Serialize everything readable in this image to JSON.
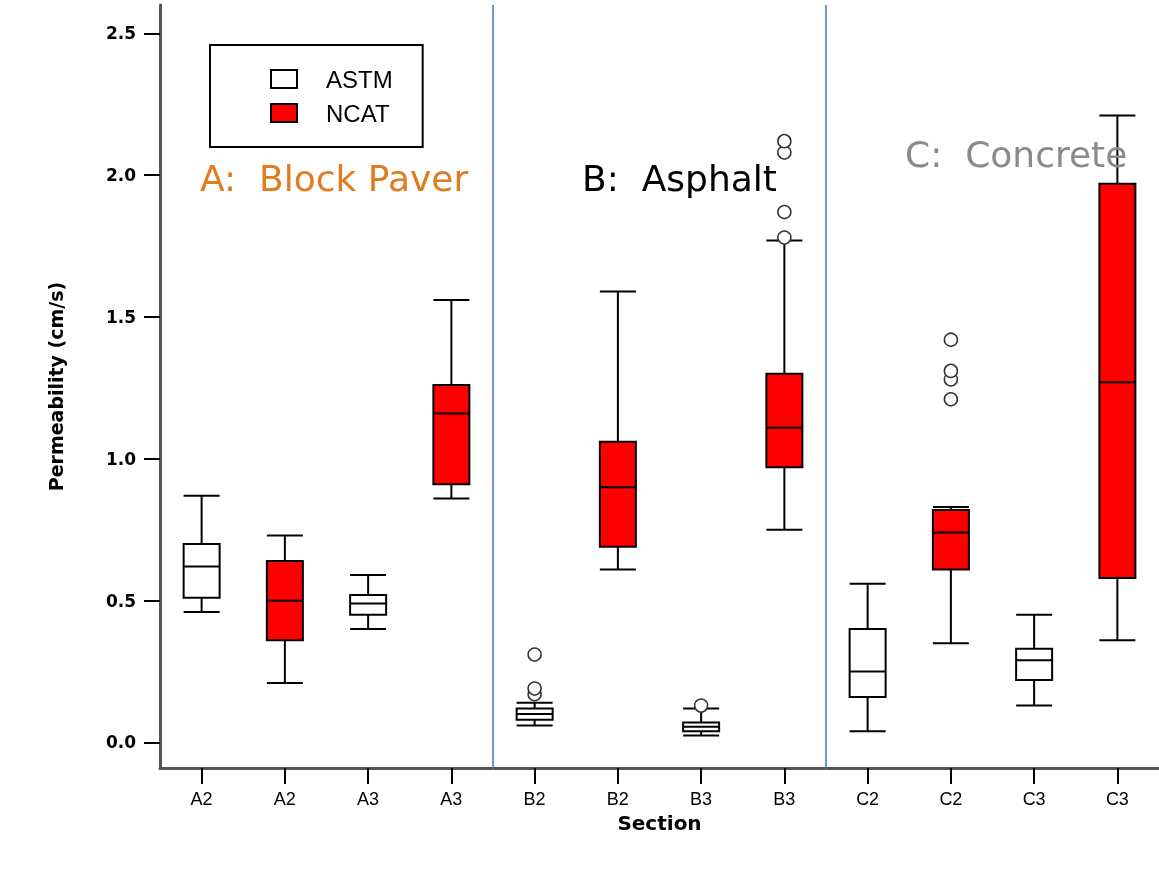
{
  "chart_data": {
    "type": "box",
    "xlabel": "Section",
    "ylabel": "Permeability (cm/s)",
    "categories": [
      "A2",
      "A2",
      "A3",
      "A3",
      "B2",
      "B2",
      "B3",
      "B3",
      "C2",
      "C2",
      "C3",
      "C3"
    ],
    "series": [
      {
        "name": "ASTM",
        "color": "#ffffff",
        "boxes": [
          {
            "low": 0.46,
            "q1": 0.51,
            "median": 0.62,
            "q3": 0.7,
            "high": 0.87
          },
          null,
          {
            "low": 0.4,
            "q1": 0.45,
            "median": 0.49,
            "q3": 0.52,
            "high": 0.59
          },
          null,
          {
            "low": 0.06,
            "q1": 0.08,
            "median": 0.1,
            "q3": 0.12,
            "high": 0.14,
            "outliers": [
              0.17,
              0.19,
              0.31
            ]
          },
          null,
          {
            "low": 0.025,
            "q1": 0.04,
            "median": 0.055,
            "q3": 0.07,
            "high": 0.12,
            "outliers": [
              0.13
            ]
          },
          null,
          {
            "low": 0.04,
            "q1": 0.16,
            "median": 0.25,
            "q3": 0.4,
            "high": 0.56
          },
          null,
          {
            "low": 0.13,
            "q1": 0.22,
            "median": 0.29,
            "q3": 0.33,
            "high": 0.45
          },
          null
        ]
      },
      {
        "name": "NCAT",
        "color": "#ff0000",
        "boxes": [
          null,
          {
            "low": 0.21,
            "q1": 0.36,
            "median": 0.5,
            "q3": 0.64,
            "high": 0.73
          },
          null,
          {
            "low": 0.86,
            "q1": 0.91,
            "median": 1.16,
            "q3": 1.26,
            "high": 1.56
          },
          null,
          {
            "low": 0.61,
            "q1": 0.69,
            "median": 0.9,
            "q3": 1.06,
            "high": 1.59
          },
          null,
          {
            "low": 0.75,
            "q1": 0.97,
            "median": 1.11,
            "q3": 1.3,
            "high": 1.77,
            "outliers": [
              1.78,
              1.87,
              2.08,
              2.12
            ]
          },
          null,
          {
            "low": 0.35,
            "q1": 0.61,
            "median": 0.74,
            "q3": 0.82,
            "high": 0.83,
            "outliers": [
              1.21,
              1.28,
              1.31,
              1.42
            ]
          },
          null,
          {
            "low": 0.36,
            "q1": 0.58,
            "median": 1.27,
            "q3": 1.97,
            "high": 2.21
          }
        ]
      }
    ],
    "ylim": [
      -0.09,
      2.6
    ],
    "yticks": [
      {
        "value": 0,
        "label": "0.0"
      },
      0.5,
      {
        "value": 1,
        "label": "1.0"
      },
      1.5,
      {
        "value": 2,
        "label": "2.0"
      },
      2.5
    ],
    "annotations": [
      "A:  Block Paver",
      "B:  Asphalt",
      "C:  Concrete"
    ],
    "legend": "top left",
    "grid": false
  }
}
